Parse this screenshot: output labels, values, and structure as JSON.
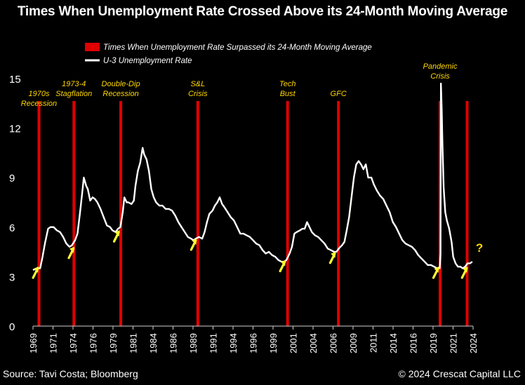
{
  "title": "Times When Unemployment Rate Crossed Above its 24-Month Moving Average",
  "footer": {
    "source": "Source: Tavi Costa; Bloomberg",
    "copyright": "© 2024 Crescat Capital LLC"
  },
  "colors": {
    "background": "#000000",
    "line": "#ffffff",
    "event": "#e00000",
    "annotation": "#ffd700",
    "arrow": "#ffff33"
  },
  "chart_data": {
    "type": "line",
    "title": "Times When Unemployment Rate Crossed Above its 24-Month Moving Average",
    "xlim": [
      1969.0,
      2024.4
    ],
    "ylim": [
      0,
      15
    ],
    "yticks": [
      0,
      3,
      6,
      9,
      12,
      15
    ],
    "xticks": [
      "1969",
      "1971",
      "1974",
      "1976",
      "1979",
      "1981",
      "1984",
      "1986",
      "1989",
      "1991",
      "1994",
      "1996",
      "1999",
      "2001",
      "2004",
      "2006",
      "2009",
      "2011",
      "2014",
      "2016",
      "2019",
      "2021",
      "2024"
    ],
    "grid": false,
    "legend_position": "top-left",
    "legend": [
      {
        "label": "Times When Unemployment Rate Surpassed its 24-Month Moving Average",
        "kind": "bar",
        "color": "#e00000"
      },
      {
        "label": "U-3 Unemployment Rate",
        "kind": "line",
        "color": "#ffffff"
      }
    ],
    "series": [
      {
        "name": "U-3 Unemployment Rate",
        "points": [
          [
            1969.0,
            3.4
          ],
          [
            1969.5,
            3.5
          ],
          [
            1969.9,
            3.5
          ],
          [
            1970.2,
            4.2
          ],
          [
            1970.5,
            5.0
          ],
          [
            1970.9,
            5.9
          ],
          [
            1971.2,
            6.0
          ],
          [
            1971.6,
            6.0
          ],
          [
            1972.0,
            5.8
          ],
          [
            1972.4,
            5.7
          ],
          [
            1972.8,
            5.4
          ],
          [
            1973.2,
            5.0
          ],
          [
            1973.6,
            4.8
          ],
          [
            1973.9,
            4.9
          ],
          [
            1974.3,
            5.2
          ],
          [
            1974.6,
            5.6
          ],
          [
            1974.9,
            6.8
          ],
          [
            1975.2,
            8.1
          ],
          [
            1975.4,
            9.0
          ],
          [
            1975.7,
            8.5
          ],
          [
            1975.9,
            8.3
          ],
          [
            1976.2,
            7.6
          ],
          [
            1976.5,
            7.8
          ],
          [
            1976.8,
            7.7
          ],
          [
            1977.1,
            7.5
          ],
          [
            1977.5,
            7.1
          ],
          [
            1977.9,
            6.6
          ],
          [
            1978.3,
            6.1
          ],
          [
            1978.7,
            6.0
          ],
          [
            1979.0,
            5.8
          ],
          [
            1979.4,
            5.7
          ],
          [
            1979.7,
            5.9
          ],
          [
            1980.0,
            6.0
          ],
          [
            1980.3,
            6.9
          ],
          [
            1980.5,
            7.8
          ],
          [
            1980.8,
            7.5
          ],
          [
            1981.0,
            7.5
          ],
          [
            1981.4,
            7.4
          ],
          [
            1981.7,
            7.6
          ],
          [
            1981.9,
            8.5
          ],
          [
            1982.2,
            9.4
          ],
          [
            1982.5,
            9.9
          ],
          [
            1982.8,
            10.8
          ],
          [
            1983.0,
            10.4
          ],
          [
            1983.3,
            10.1
          ],
          [
            1983.6,
            9.4
          ],
          [
            1983.9,
            8.3
          ],
          [
            1984.2,
            7.8
          ],
          [
            1984.5,
            7.5
          ],
          [
            1984.9,
            7.3
          ],
          [
            1985.3,
            7.3
          ],
          [
            1985.7,
            7.1
          ],
          [
            1986.1,
            7.1
          ],
          [
            1986.5,
            7.0
          ],
          [
            1986.9,
            6.7
          ],
          [
            1987.3,
            6.3
          ],
          [
            1987.7,
            6.0
          ],
          [
            1988.1,
            5.7
          ],
          [
            1988.5,
            5.4
          ],
          [
            1988.9,
            5.3
          ],
          [
            1989.2,
            5.2
          ],
          [
            1989.5,
            5.3
          ],
          [
            1989.9,
            5.4
          ],
          [
            1990.3,
            5.3
          ],
          [
            1990.6,
            5.7
          ],
          [
            1990.9,
            6.3
          ],
          [
            1991.2,
            6.8
          ],
          [
            1991.6,
            7.0
          ],
          [
            1991.9,
            7.3
          ],
          [
            1992.2,
            7.5
          ],
          [
            1992.5,
            7.8
          ],
          [
            1992.8,
            7.4
          ],
          [
            1993.1,
            7.2
          ],
          [
            1993.5,
            6.9
          ],
          [
            1993.9,
            6.6
          ],
          [
            1994.3,
            6.4
          ],
          [
            1994.7,
            6.0
          ],
          [
            1995.1,
            5.6
          ],
          [
            1995.5,
            5.6
          ],
          [
            1995.9,
            5.5
          ],
          [
            1996.3,
            5.4
          ],
          [
            1996.7,
            5.2
          ],
          [
            1997.1,
            5.0
          ],
          [
            1997.5,
            4.9
          ],
          [
            1997.9,
            4.6
          ],
          [
            1998.3,
            4.4
          ],
          [
            1998.7,
            4.5
          ],
          [
            1999.1,
            4.3
          ],
          [
            1999.5,
            4.2
          ],
          [
            1999.9,
            4.0
          ],
          [
            2000.3,
            3.9
          ],
          [
            2000.6,
            3.9
          ],
          [
            2000.9,
            4.0
          ],
          [
            2001.3,
            4.4
          ],
          [
            2001.6,
            4.8
          ],
          [
            2001.9,
            5.6
          ],
          [
            2002.2,
            5.7
          ],
          [
            2002.6,
            5.8
          ],
          [
            2002.9,
            5.9
          ],
          [
            2003.2,
            5.9
          ],
          [
            2003.5,
            6.3
          ],
          [
            2003.8,
            6.0
          ],
          [
            2004.1,
            5.7
          ],
          [
            2004.5,
            5.5
          ],
          [
            2004.9,
            5.4
          ],
          [
            2005.3,
            5.2
          ],
          [
            2005.7,
            5.0
          ],
          [
            2006.1,
            4.7
          ],
          [
            2006.5,
            4.6
          ],
          [
            2006.9,
            4.5
          ],
          [
            2007.2,
            4.5
          ],
          [
            2007.5,
            4.7
          ],
          [
            2007.9,
            4.9
          ],
          [
            2008.2,
            5.1
          ],
          [
            2008.5,
            5.8
          ],
          [
            2008.8,
            6.6
          ],
          [
            2009.1,
            7.8
          ],
          [
            2009.4,
            9.0
          ],
          [
            2009.7,
            9.8
          ],
          [
            2010.0,
            10.0
          ],
          [
            2010.3,
            9.8
          ],
          [
            2010.6,
            9.5
          ],
          [
            2010.9,
            9.8
          ],
          [
            2011.2,
            9.0
          ],
          [
            2011.6,
            9.0
          ],
          [
            2011.9,
            8.6
          ],
          [
            2012.3,
            8.2
          ],
          [
            2012.7,
            7.9
          ],
          [
            2013.1,
            7.7
          ],
          [
            2013.5,
            7.3
          ],
          [
            2013.9,
            6.9
          ],
          [
            2014.3,
            6.3
          ],
          [
            2014.7,
            6.0
          ],
          [
            2015.1,
            5.6
          ],
          [
            2015.5,
            5.2
          ],
          [
            2015.9,
            5.0
          ],
          [
            2016.3,
            4.9
          ],
          [
            2016.7,
            4.8
          ],
          [
            2017.1,
            4.6
          ],
          [
            2017.5,
            4.3
          ],
          [
            2017.9,
            4.1
          ],
          [
            2018.3,
            3.9
          ],
          [
            2018.7,
            3.7
          ],
          [
            2019.1,
            3.7
          ],
          [
            2019.5,
            3.6
          ],
          [
            2019.9,
            3.5
          ],
          [
            2020.2,
            3.5
          ],
          [
            2020.3,
            4.4
          ],
          [
            2020.35,
            14.7
          ],
          [
            2020.45,
            13.2
          ],
          [
            2020.55,
            11.0
          ],
          [
            2020.7,
            8.4
          ],
          [
            2020.9,
            6.9
          ],
          [
            2021.1,
            6.4
          ],
          [
            2021.4,
            5.9
          ],
          [
            2021.7,
            5.1
          ],
          [
            2021.9,
            4.2
          ],
          [
            2022.2,
            3.8
          ],
          [
            2022.5,
            3.6
          ],
          [
            2022.8,
            3.6
          ],
          [
            2023.1,
            3.5
          ],
          [
            2023.4,
            3.6
          ],
          [
            2023.7,
            3.8
          ],
          [
            2024.0,
            3.8
          ],
          [
            2024.3,
            3.9
          ]
        ]
      }
    ],
    "events": [
      {
        "year": 1969.75,
        "label": [
          "1970s",
          "Recession"
        ]
      },
      {
        "year": 1974.15,
        "label": [
          "1973-4",
          "Stagflation"
        ]
      },
      {
        "year": 1980.05,
        "label": [
          "Double-Dip",
          "Recession"
        ]
      },
      {
        "year": 1989.75,
        "label": [
          "S&L",
          "Crisis"
        ]
      },
      {
        "year": 2001.05,
        "label": [
          "Tech",
          "Bust"
        ]
      },
      {
        "year": 2007.45,
        "label": [
          "GFC"
        ]
      },
      {
        "year": 2020.25,
        "label": [
          "Pandemic",
          "Crisis"
        ]
      },
      {
        "year": 2023.65,
        "label": []
      }
    ],
    "annotations": [
      {
        "text": "?",
        "x": 2025.2,
        "y": 4.5
      }
    ],
    "arrow_points": [
      {
        "x": 1969.1,
        "y": 3.1
      },
      {
        "x": 1973.6,
        "y": 4.3
      },
      {
        "x": 1979.3,
        "y": 5.3
      },
      {
        "x": 1989.0,
        "y": 4.8
      },
      {
        "x": 2000.2,
        "y": 3.5
      },
      {
        "x": 2006.5,
        "y": 4.0
      },
      {
        "x": 2019.5,
        "y": 3.1
      },
      {
        "x": 2023.1,
        "y": 3.1
      }
    ]
  }
}
